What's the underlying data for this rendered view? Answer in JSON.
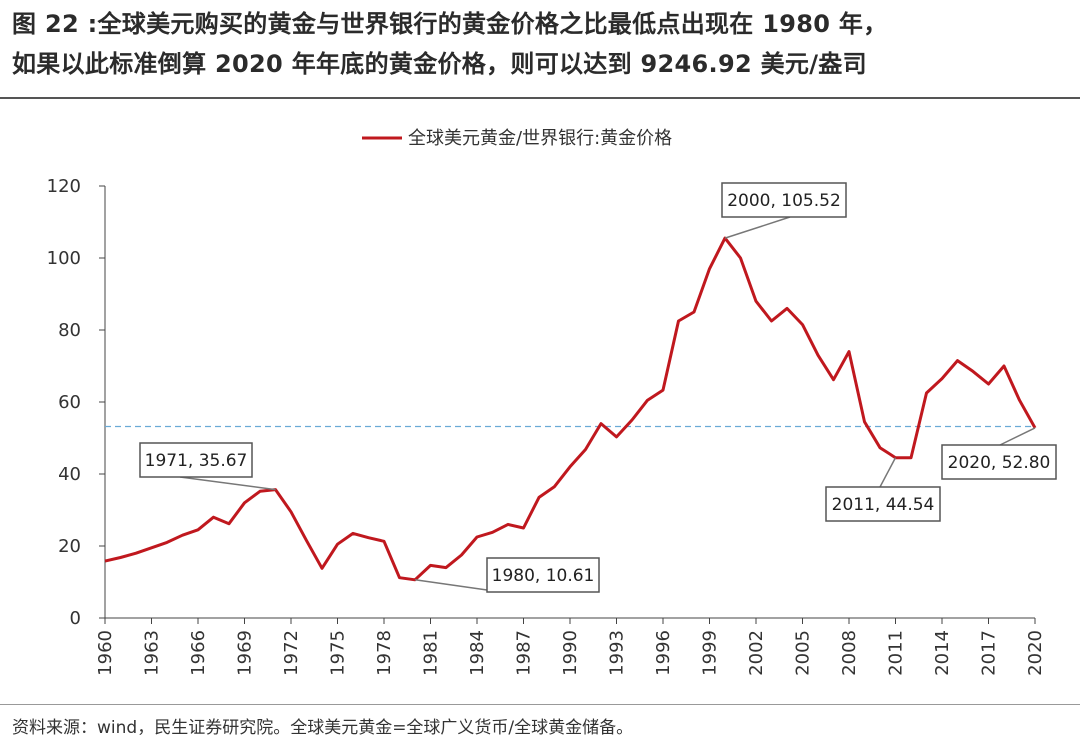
{
  "title": {
    "line1": "图 22 :全球美元购买的黄金与世界银行的黄金价格之比最低点出现在 1980 年，",
    "line2": "如果以此标准倒算 2020 年年底的黄金价格，则可以达到 9246.92 美元/盎司"
  },
  "source": "资料来源：wind，民生证券研究院。全球美元黄金=全球广义货币/全球黄金储备。",
  "colors": {
    "line": "#c0181e",
    "reference": "#6aaad6",
    "axis": "#444444",
    "callout_border": "#555555"
  },
  "chart_data": {
    "type": "line",
    "title": "",
    "xlabel": "",
    "ylabel": "",
    "ylim": [
      0,
      120
    ],
    "yticks": [
      0,
      20,
      40,
      60,
      80,
      100,
      120
    ],
    "xlim": [
      1960,
      2020
    ],
    "xticks": [
      1960,
      1963,
      1966,
      1969,
      1972,
      1975,
      1978,
      1981,
      1984,
      1987,
      1990,
      1993,
      1996,
      1999,
      2002,
      2005,
      2008,
      2011,
      2014,
      2017,
      2020
    ],
    "grid": false,
    "legend": "top-center",
    "series": [
      {
        "name": "全球美元黄金/世界银行:黄金价格",
        "x": [
          1960,
          1961,
          1962,
          1963,
          1964,
          1965,
          1966,
          1967,
          1968,
          1969,
          1970,
          1971,
          1972,
          1973,
          1974,
          1975,
          1976,
          1977,
          1978,
          1979,
          1980,
          1981,
          1982,
          1983,
          1984,
          1985,
          1986,
          1987,
          1988,
          1989,
          1990,
          1991,
          1992,
          1993,
          1994,
          1995,
          1996,
          1997,
          1998,
          1999,
          2000,
          2001,
          2002,
          2003,
          2004,
          2005,
          2006,
          2007,
          2008,
          2009,
          2010,
          2011,
          2012,
          2013,
          2014,
          2015,
          2016,
          2017,
          2018,
          2019,
          2020
        ],
        "values": [
          15.8,
          16.8,
          18.0,
          19.5,
          21.0,
          23.0,
          24.5,
          28.0,
          26.2,
          32.0,
          35.2,
          35.67,
          29.5,
          21.5,
          13.8,
          20.5,
          23.5,
          22.3,
          21.3,
          11.2,
          10.61,
          14.6,
          14.0,
          17.5,
          22.5,
          23.8,
          26.0,
          25.0,
          33.5,
          36.5,
          42.0,
          46.8,
          54.0,
          50.3,
          55.0,
          60.5,
          63.3,
          82.5,
          85.0,
          97.0,
          105.52,
          100.0,
          88.0,
          82.5,
          86.0,
          81.5,
          73.0,
          66.2,
          74.0,
          54.5,
          47.3,
          44.54,
          44.5,
          62.5,
          66.5,
          71.5,
          68.5,
          65.0,
          70.0,
          60.5,
          52.8
        ]
      }
    ],
    "reference_line": {
      "y": 53.2
    },
    "callouts": [
      {
        "year": 1971,
        "value": 35.67,
        "text": "1971, 35.67"
      },
      {
        "year": 1980,
        "value": 10.61,
        "text": "1980, 10.61"
      },
      {
        "year": 2000,
        "value": 105.52,
        "text": "2000, 105.52"
      },
      {
        "year": 2011,
        "value": 44.54,
        "text": "2011, 44.54"
      },
      {
        "year": 2020,
        "value": 52.8,
        "text": "2020, 52.80"
      }
    ]
  }
}
